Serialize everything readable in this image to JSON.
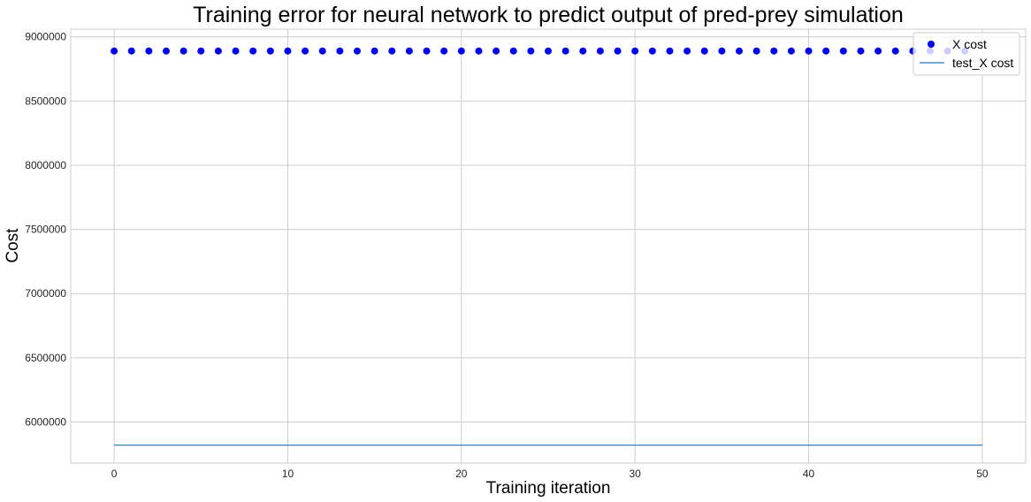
{
  "chart_data": {
    "type": "scatter",
    "title": "Training error for neural network to predict output of pred-prey simulation",
    "xlabel": "Training iteration",
    "ylabel": "Cost",
    "xlim": [
      -2.5,
      52.5
    ],
    "ylim": [
      5680000,
      9060000
    ],
    "xticks": [
      0,
      10,
      20,
      30,
      40,
      50
    ],
    "xtick_labels": [
      "0",
      "10",
      "20",
      "30",
      "40",
      "50"
    ],
    "yticks": [
      6000000,
      6500000,
      7000000,
      7500000,
      8000000,
      8500000,
      9000000
    ],
    "ytick_labels": [
      "6000000",
      "6500000",
      "7000000",
      "7500000",
      "8000000",
      "8500000",
      "9000000"
    ],
    "grid": true,
    "legend_position": "top-right",
    "series": [
      {
        "name": "X cost",
        "kind": "scatter",
        "color": "#0000ff",
        "x": [
          0,
          1,
          2,
          3,
          4,
          5,
          6,
          7,
          8,
          9,
          10,
          11,
          12,
          13,
          14,
          15,
          16,
          17,
          18,
          19,
          20,
          21,
          22,
          23,
          24,
          25,
          26,
          27,
          28,
          29,
          30,
          31,
          32,
          33,
          34,
          35,
          36,
          37,
          38,
          39,
          40,
          41,
          42,
          43,
          44,
          45,
          46,
          47,
          48,
          49
        ],
        "y": [
          8890000,
          8890000,
          8890000,
          8890000,
          8890000,
          8890000,
          8890000,
          8890000,
          8890000,
          8890000,
          8890000,
          8890000,
          8890000,
          8890000,
          8890000,
          8890000,
          8890000,
          8890000,
          8890000,
          8890000,
          8890000,
          8890000,
          8890000,
          8890000,
          8890000,
          8890000,
          8890000,
          8890000,
          8890000,
          8890000,
          8890000,
          8890000,
          8890000,
          8890000,
          8890000,
          8890000,
          8890000,
          8890000,
          8890000,
          8890000,
          8890000,
          8890000,
          8890000,
          8890000,
          8890000,
          8890000,
          8890000,
          8890000,
          8890000,
          8890000
        ]
      },
      {
        "name": "test_X cost",
        "kind": "line",
        "color": "#1f77b4",
        "x": [
          0,
          50
        ],
        "y": [
          5820000,
          5820000
        ]
      }
    ]
  }
}
